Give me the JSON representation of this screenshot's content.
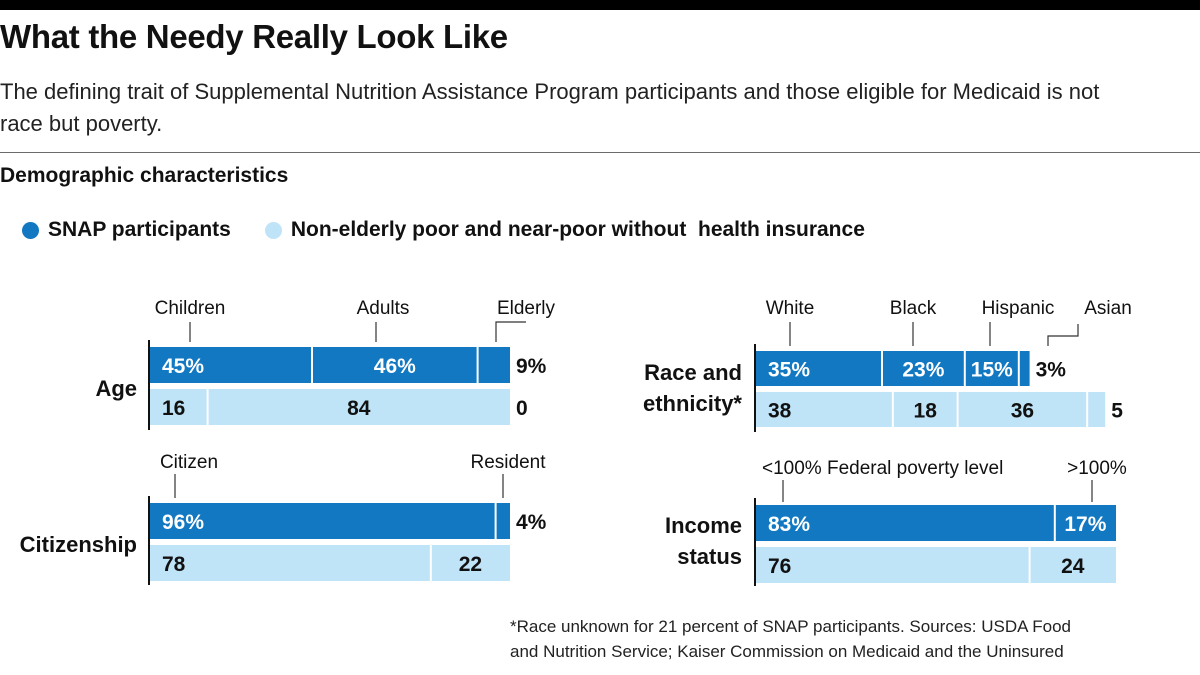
{
  "header": {
    "title": "What the Needy Really Look Like",
    "subtitle": "The defining trait of Supplemental Nutrition Assistance Program participants and those eligible for Medicaid is not race but poverty.",
    "section_label": "Demographic characteristics"
  },
  "legend": [
    {
      "name": "SNAP participants",
      "color": "#1278c2"
    },
    {
      "name": "Non-elderly poor and near-poor without  health insurance",
      "color": "#bfe3f7"
    }
  ],
  "colors": {
    "dark": "#1278c2",
    "light": "#bfe3f7",
    "text": "#111111"
  },
  "footnote": {
    "line1": "*Race unknown for 21 percent of SNAP participants. Sources: USDA Food",
    "line2": "and Nutrition Service; Kaiser Commission on Medicaid and the Uninsured"
  },
  "chart_data": [
    {
      "type": "bar",
      "stacked": true,
      "title": "Age",
      "categories": [
        "Children",
        "Adults",
        "Elderly"
      ],
      "series": [
        {
          "name": "SNAP participants",
          "values": [
            45,
            46,
            9
          ],
          "labels": [
            "45%",
            "46%",
            "9%"
          ]
        },
        {
          "name": "Non-elderly poor and near-poor without  health insurance",
          "values": [
            16,
            84,
            0
          ],
          "labels": [
            "16",
            "84",
            "0"
          ]
        }
      ]
    },
    {
      "type": "bar",
      "stacked": true,
      "title": "Citizenship",
      "categories": [
        "Citizen",
        "Resident"
      ],
      "series": [
        {
          "name": "SNAP participants",
          "values": [
            96,
            4
          ],
          "labels": [
            "96%",
            "4%"
          ]
        },
        {
          "name": "Non-elderly poor and near-poor without  health insurance",
          "values": [
            78,
            22
          ],
          "labels": [
            "78",
            "22"
          ]
        }
      ]
    },
    {
      "type": "bar",
      "stacked": true,
      "title": "Race and ethnicity*",
      "categories": [
        "White",
        "Black",
        "Hispanic",
        "Asian"
      ],
      "series": [
        {
          "name": "SNAP participants",
          "values": [
            35,
            23,
            15,
            3
          ],
          "labels": [
            "35%",
            "23%",
            "15%",
            "3%"
          ]
        },
        {
          "name": "Non-elderly poor and near-poor without  health insurance",
          "values": [
            38,
            18,
            36,
            5
          ],
          "labels": [
            "38",
            "18",
            "36",
            "5"
          ]
        }
      ]
    },
    {
      "type": "bar",
      "stacked": true,
      "title": "Income status",
      "categories": [
        "<100% Federal poverty level",
        ">100%"
      ],
      "series": [
        {
          "name": "SNAP participants",
          "values": [
            83,
            17
          ],
          "labels": [
            "83%",
            "17%"
          ]
        },
        {
          "name": "Non-elderly poor and near-poor without  health insurance",
          "values": [
            76,
            24
          ],
          "labels": [
            "76",
            "24"
          ]
        }
      ]
    }
  ]
}
